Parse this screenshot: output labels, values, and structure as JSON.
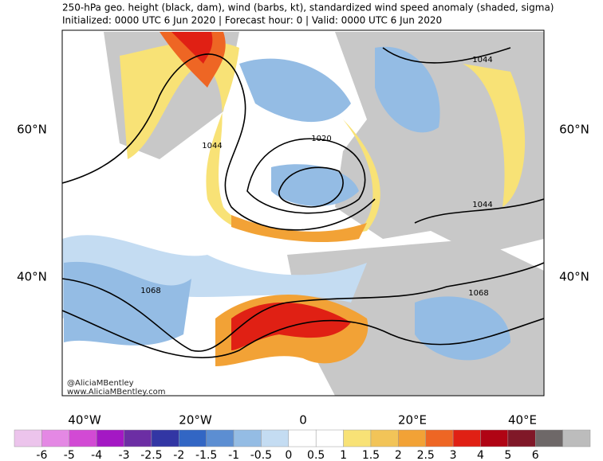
{
  "header": {
    "title": "250-hPa geo. height (black, dam), wind (barbs, kt), standardized wind speed anomaly (shaded, sigma)",
    "subtitle": "Initialized: 0000 UTC 6 Jun 2020 | Forecast hour: 0 | Valid: 0000 UTC 6 Jun 2020"
  },
  "map": {
    "lat_labels": [
      "60°N",
      "40°N"
    ],
    "lon_labels": [
      "40°W",
      "20°W",
      "0",
      "20°E",
      "40°E"
    ],
    "contour_labels": [
      "1044",
      "1020",
      "1044",
      "1044",
      "1068",
      "1068"
    ],
    "credit": [
      "@AliciaMBentley",
      "www.AliciaMBentley.com"
    ]
  },
  "colorbar": {
    "colors": [
      "#ecc4ec",
      "#e488e4",
      "#d24ad4",
      "#a418c4",
      "#6c2ea4",
      "#3236a4",
      "#3266c4",
      "#5c8ed2",
      "#94bce4",
      "#c4dcf2",
      "#ffffff",
      "#ffffff",
      "#f8e276",
      "#f2c458",
      "#f2a236",
      "#ee6624",
      "#e02014",
      "#b00414",
      "#801828",
      "#6e6868",
      "#bcbcbc"
    ],
    "ticks": [
      -6,
      -5,
      -4,
      -3,
      -2.5,
      -2,
      -1.5,
      -1,
      -0.5,
      0,
      0.5,
      1,
      1.5,
      2,
      2.5,
      3,
      4,
      5,
      6
    ]
  }
}
